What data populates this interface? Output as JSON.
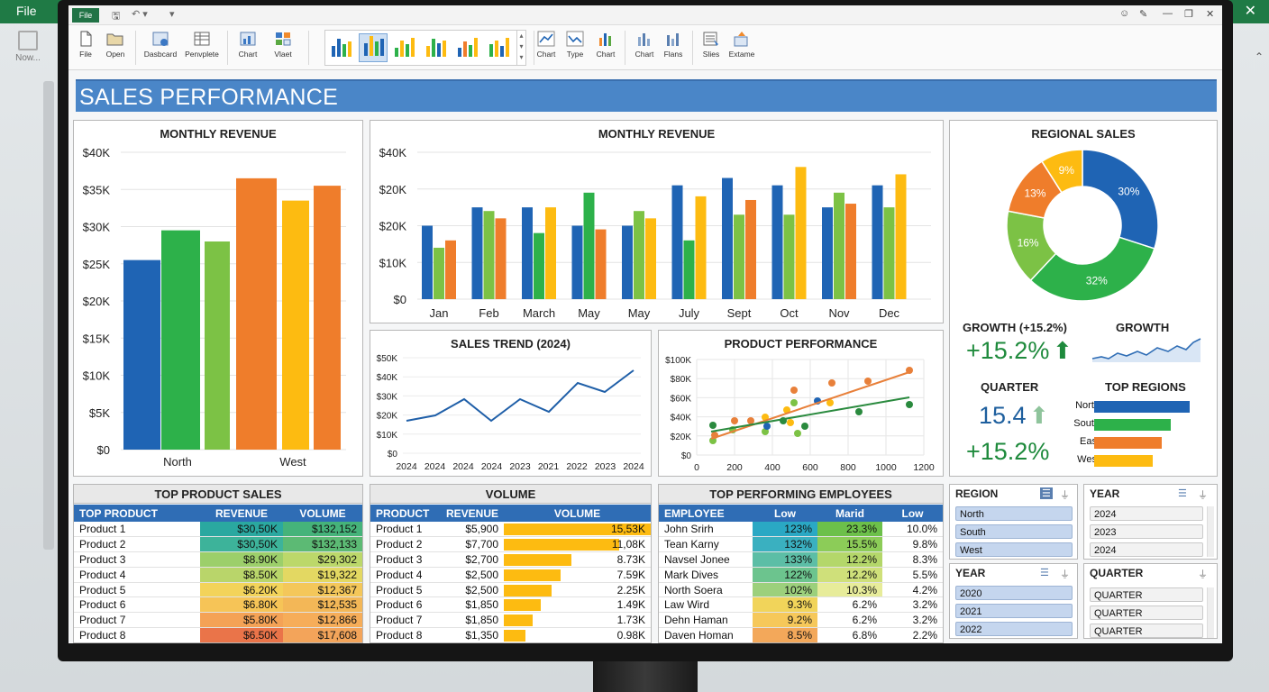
{
  "bg": {
    "file_label": "File",
    "close_glyph": "✕",
    "now_label": "Now...",
    "caret_glyph": "⌃"
  },
  "qat": {
    "file_label": "File",
    "save_glyph": "🖫",
    "undo_glyph": "↶ ▾",
    "customize_glyph": "▾"
  },
  "window_controls": {
    "settings": "☺",
    "pen": "✎",
    "minimize": "—",
    "restore": "❐",
    "close": "✕"
  },
  "ribbon": {
    "buttons": [
      "File",
      "Open",
      "Dasbcard",
      "Penvplete",
      "Chart",
      "Vlaet",
      "Chart",
      "Type",
      "Chart",
      "Chart",
      "Flans",
      "Slies",
      "Extame"
    ]
  },
  "dashboard": {
    "title": "SALES PERFORMANCE"
  },
  "colors": {
    "blue": "#1f64b4",
    "green": "#2db14a",
    "lightgreen": "#7cc245",
    "orange": "#ef7d2b",
    "yellow": "#fdbb11",
    "header": "#2f6db5"
  },
  "monthly_revenue_1": {
    "title": "MONTHLY REVENUE",
    "y_ticks": [
      "$40K",
      "$35K",
      "$30K",
      "$25K",
      "$20K",
      "$15K",
      "$10K",
      "$5K",
      "$0"
    ],
    "x_labels": [
      "North",
      "West"
    ]
  },
  "monthly_revenue_2": {
    "title": "MONTHLY REVENUE",
    "y_ticks": [
      "$40K",
      "$20K",
      "$20K",
      "$10K",
      "$0"
    ],
    "months": [
      "Jan",
      "Feb",
      "March",
      "May",
      "May",
      "July",
      "Sept",
      "Oct",
      "Nov",
      "Dec"
    ]
  },
  "regional_sales": {
    "title": "REGIONAL SALES",
    "labels": [
      "30%",
      "32%",
      "16%",
      "13%",
      "9%"
    ]
  },
  "sales_trend": {
    "title": "SALES TREND (2024)",
    "y_ticks": [
      "$50K",
      "$40K",
      "$30K",
      "$20K",
      "$10K",
      "$0"
    ],
    "x_labels": [
      "2024",
      "2024",
      "2024",
      "2024",
      "2023",
      "2021",
      "2022",
      "2023",
      "2024"
    ]
  },
  "product_performance": {
    "title": "PRODUCT PERFORMANCE",
    "y_ticks": [
      "$100K",
      "$80K",
      "$60K",
      "$40K",
      "$20K",
      "$0"
    ],
    "x_labels": [
      "0",
      "200",
      "400",
      "600",
      "800",
      "1000",
      "1200"
    ]
  },
  "kpis": {
    "growth_title": "GROWTH (+15.2%)",
    "growth_value": "+15.2%",
    "growth2_title": "GROWTH",
    "quarter_title": "QUARTER",
    "quarter_value": "15.4",
    "quarter_growth": "+15.2%",
    "arrow_up": "⬆",
    "top_regions_title": "TOP REGIONS",
    "top_regions": [
      {
        "name": "North",
        "value": 1.0
      },
      {
        "name": "South",
        "value": 0.8
      },
      {
        "name": "East",
        "value": 0.71
      },
      {
        "name": "West",
        "value": 0.61
      }
    ]
  },
  "top_product_sales": {
    "title": "TOP PRODUCT SALES",
    "headers": [
      "TOP PRODUCT",
      "REVENUE",
      "VOLUME"
    ],
    "rows": [
      [
        "Product 1",
        "$30,50K",
        "$132,152"
      ],
      [
        "Product 2",
        "$30,50K",
        "$132,133"
      ],
      [
        "Product 3",
        "$8.90K",
        "$29,302"
      ],
      [
        "Product 4",
        "$8.50K",
        "$19,322"
      ],
      [
        "Product 5",
        "$6.20K",
        "$12,367"
      ],
      [
        "Product 6",
        "$6.80K",
        "$12,535"
      ],
      [
        "Product 7",
        "$5.80K",
        "$12,866"
      ],
      [
        "Product 8",
        "$6.50K",
        "$17,608"
      ]
    ]
  },
  "volume": {
    "title": "VOLUME",
    "headers": [
      "PRODUCT",
      "REVENUE",
      "VOLUME"
    ],
    "rows": [
      [
        "Product 1",
        "$5,900",
        "15,53K"
      ],
      [
        "Product 2",
        "$7,700",
        "11,08K"
      ],
      [
        "Product 3",
        "$2,700",
        "8.73K"
      ],
      [
        "Product 4",
        "$2,500",
        "7.59K"
      ],
      [
        "Product 5",
        "$2,500",
        "2.25K"
      ],
      [
        "Product 6",
        "$1,850",
        "1.49K"
      ],
      [
        "Product 7",
        "$1,850",
        "1.73K"
      ],
      [
        "Product 8",
        "$1,350",
        "0.98K"
      ]
    ],
    "bar_fractions": [
      1.0,
      0.75,
      0.44,
      0.37,
      0.31,
      0.24,
      0.19,
      0.14
    ]
  },
  "top_employees": {
    "title": "TOP PERFORMING EMPLOYEES",
    "headers": [
      "EMPLOYEE",
      "Low",
      "Marid",
      "Low"
    ],
    "rows": [
      [
        "John Srirh",
        "123%",
        "23.3%",
        "10.0%"
      ],
      [
        "Tean Karny",
        "132%",
        "15.5%",
        "9.8%"
      ],
      [
        "Navsel Jonee",
        "133%",
        "12.2%",
        "8.3%"
      ],
      [
        "Mark Dives",
        "122%",
        "12.2%",
        "5.5%"
      ],
      [
        "North Soera",
        "102%",
        "10.3%",
        "4.2%"
      ],
      [
        "Law Wird",
        "9.3%",
        "6.2%",
        "3.2%"
      ],
      [
        "Dehn Haman",
        "9.2%",
        "6.2%",
        "3.2%"
      ],
      [
        "Daven Homan",
        "8.5%",
        "6.8%",
        "2.2%"
      ]
    ]
  },
  "slicers": {
    "region": {
      "title": "REGION",
      "items": [
        "North",
        "South",
        "West"
      ]
    },
    "year1": {
      "title": "YEAR",
      "items": [
        "2024",
        "2023",
        "2024"
      ]
    },
    "year2": {
      "title": "YEAR",
      "items": [
        "2020",
        "2021",
        "2022"
      ]
    },
    "quarter": {
      "title": "QUARTER",
      "items": [
        "QUARTER",
        "QUARTER",
        "QUARTER"
      ]
    },
    "multi_icon": "☰",
    "filter_icon": "⏚",
    "scroll_up": "▴",
    "scroll_down": "▾"
  }
}
